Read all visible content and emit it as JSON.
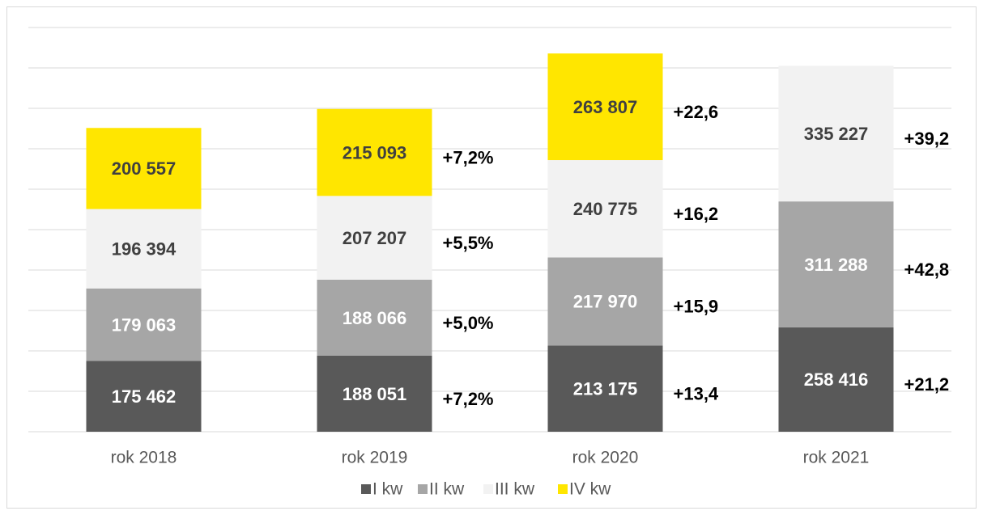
{
  "chart_data": {
    "type": "stacked_bar",
    "categories": [
      "rok 2018",
      "rok 2019",
      "rok 2020",
      "rok 2021"
    ],
    "series": [
      {
        "name": "I kw",
        "color": "#595959",
        "values": [
          175462,
          188051,
          213175,
          258416
        ],
        "value_labels": [
          "175 462",
          "188 051",
          "213 175",
          "258 416"
        ],
        "growth_labels": [
          null,
          "+7,2%",
          "+13,4",
          "+21,2"
        ]
      },
      {
        "name": "II kw",
        "color": "#a6a6a6",
        "values": [
          179063,
          188066,
          217970,
          311288
        ],
        "value_labels": [
          "179 063",
          "188 066",
          "217 970",
          "311 288"
        ],
        "growth_labels": [
          null,
          "+5,0%",
          "+15,9",
          "+42,8"
        ]
      },
      {
        "name": "III kw",
        "color": "#f2f2f2",
        "values": [
          196394,
          207207,
          240775,
          335227
        ],
        "value_labels": [
          "196 394",
          "207 207",
          "240 775",
          "335 227"
        ],
        "growth_labels": [
          null,
          "+5,5%",
          "+16,2",
          "+39,2"
        ]
      },
      {
        "name": "IV kw",
        "color": "#ffe600",
        "values": [
          200557,
          215093,
          263807,
          null
        ],
        "value_labels": [
          "200 557",
          "215 093",
          "263 807",
          null
        ],
        "growth_labels": [
          null,
          "+7,2%",
          "+22,6",
          null
        ]
      }
    ],
    "ylim": [
      0,
      1000000
    ],
    "yticks": [
      0,
      100000,
      200000,
      300000,
      400000,
      500000,
      600000,
      700000,
      800000,
      900000,
      1000000
    ],
    "grid": true,
    "legend": "bottom"
  }
}
